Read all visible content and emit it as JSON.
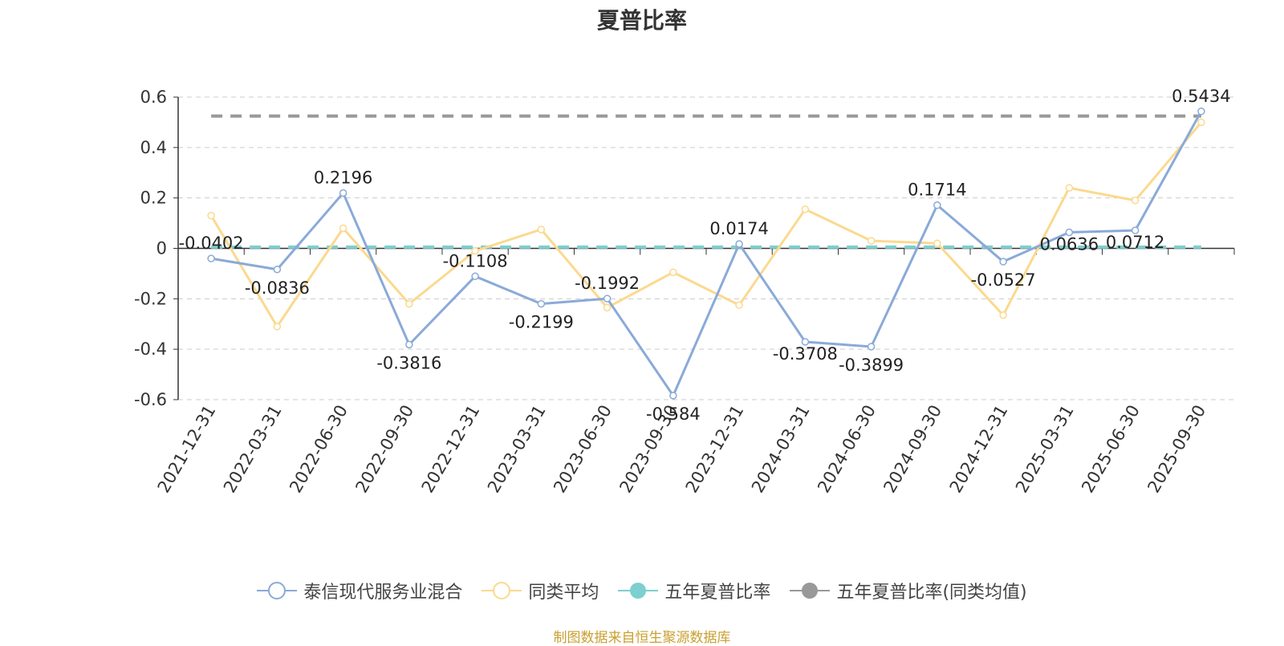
{
  "title": "夏普比率",
  "source_text": "制图数据来自恒生聚源数据库",
  "colors": {
    "fund": "#8aaad8",
    "peer": "#fbd98e",
    "five_year": "#7ecfcf",
    "five_year_peer": "#999999",
    "grid": "#cccccc",
    "axis": "#333333"
  },
  "chart_data": {
    "type": "line",
    "title": "夏普比率",
    "categories": [
      "2021-12-31",
      "2022-03-31",
      "2022-06-30",
      "2022-09-30",
      "2022-12-31",
      "2023-03-31",
      "2023-06-30",
      "2023-09-30",
      "2023-12-31",
      "2024-03-31",
      "2024-06-30",
      "2024-09-30",
      "2024-12-31",
      "2025-03-31",
      "2025-06-30",
      "2025-09-30"
    ],
    "ylim": [
      -0.6,
      0.6
    ],
    "yticks": [
      0.6,
      0.4,
      0.2,
      0,
      -0.2,
      -0.4,
      -0.6
    ],
    "ytick_labels": [
      "0.6",
      "0.4",
      "0.2",
      "0",
      "-0.2",
      "-0.4",
      "-0.6"
    ],
    "grid": true,
    "legend_position": "bottom",
    "series": [
      {
        "name": "泰信现代服务业混合",
        "values": [
          -0.0402,
          -0.0836,
          0.2196,
          -0.3816,
          -0.1108,
          -0.2199,
          -0.1992,
          -0.584,
          0.0174,
          -0.3708,
          -0.3899,
          0.1714,
          -0.0527,
          0.0636,
          0.0712,
          0.5434
        ],
        "labels": [
          "-0.0402",
          "-0.0836",
          "0.2196",
          "-0.3816",
          "-0.1108",
          "-0.2199",
          "-0.1992",
          "-0.584",
          "0.0174",
          "-0.3708",
          "-0.3899",
          "0.1714",
          "-0.0527",
          "0.0636",
          "0.0712",
          "0.5434"
        ]
      },
      {
        "name": "同类平均",
        "values": [
          0.13,
          -0.31,
          0.08,
          -0.22,
          -0.01,
          0.075,
          -0.235,
          -0.095,
          -0.225,
          0.155,
          0.03,
          0.02,
          -0.265,
          0.24,
          0.19,
          0.5
        ]
      },
      {
        "name": "五年夏普比率",
        "values": [
          0.005,
          0.005,
          0.005,
          0.005,
          0.005,
          0.005,
          0.005,
          0.005,
          0.005,
          0.005,
          0.005,
          0.005,
          0.005,
          0.005,
          0.005,
          0.005
        ]
      },
      {
        "name": "五年夏普比率(同类均值)",
        "values": [
          0.525,
          0.525,
          0.525,
          0.525,
          0.525,
          0.525,
          0.525,
          0.525,
          0.525,
          0.525,
          0.525,
          0.525,
          0.525,
          0.525,
          0.525,
          0.525
        ]
      }
    ]
  },
  "legend": [
    {
      "label": "泰信现代服务业混合",
      "icon": "hollow-circle-line-icon",
      "color": "#8aaad8"
    },
    {
      "label": "同类平均",
      "icon": "hollow-circle-line-icon",
      "color": "#fbd98e"
    },
    {
      "label": "五年夏普比率",
      "icon": "filled-circle-line-icon",
      "color": "#7ecfcf"
    },
    {
      "label": "五年夏普比率(同类均值)",
      "icon": "filled-circle-line-icon",
      "color": "#999999"
    }
  ]
}
